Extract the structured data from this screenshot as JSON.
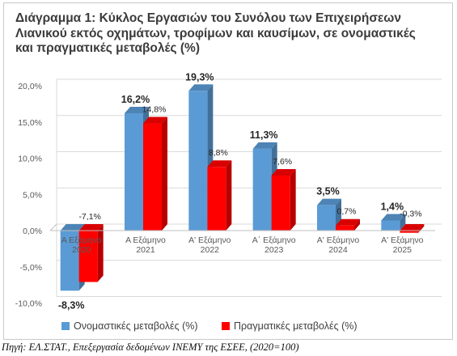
{
  "chart_data": {
    "type": "bar",
    "title": "Διάγραμμα 1: Κύκλος Εργασιών του Συνόλου των Επιχειρήσεων\nΛιανικού εκτός οχημάτων, τροφίμων και καυσίμων, σε ονομαστικές\nκαι πραγματικές μεταβολές (%)",
    "categories": [
      "Α Εξάμηνο\n2020",
      "Α Εξάμηνο\n2021",
      "Α' Εξάμηνο\n2022",
      "Α΄ Εξάμηνο\n2023",
      "Α' Εξάμηνο\n2024",
      "Α' Εξάμηνο\n2025"
    ],
    "series": [
      {
        "name": "Ονομαστικές μεταβολές (%)",
        "color": "#5b9bd5",
        "values": [
          -8.3,
          16.2,
          19.3,
          11.3,
          3.5,
          1.4
        ],
        "labels": [
          "-8,3%",
          "16,2%",
          "19,3%",
          "11,3%",
          "3,5%",
          "1,4%"
        ]
      },
      {
        "name": "Πραγματικές μεταβολές (%)",
        "color": "#ff0000",
        "values": [
          -7.1,
          14.8,
          8.8,
          7.6,
          0.7,
          -0.3
        ],
        "labels": [
          "-7,1%",
          "14,8%",
          "8,8%",
          "7,6%",
          "0,7%",
          "-0,3%"
        ]
      }
    ],
    "yticks": [
      20,
      15,
      10,
      5,
      0,
      -5,
      -10
    ],
    "ytick_labels": [
      "20,0%",
      "15,0%",
      "10,0%",
      "5,0%",
      "0,0%",
      "-5,0%",
      "-10,0%"
    ],
    "ylim": [
      -10,
      20
    ],
    "grid": true,
    "legend_position": "bottom"
  },
  "source": "Πηγή: ΕΛ.ΣΤΑΤ., Επεξεργασία δεδομένων ΙΝΕΜΥ της ΕΣΕΕ, (2020=100)"
}
